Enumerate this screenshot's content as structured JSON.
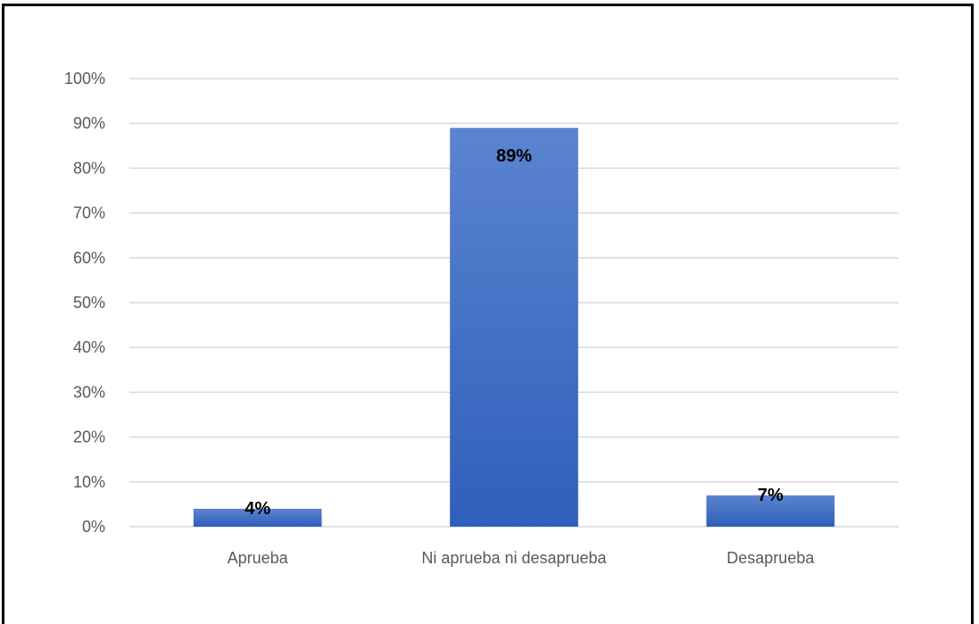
{
  "chart_data": {
    "type": "bar",
    "title": "",
    "xlabel": "",
    "ylabel": "",
    "categories": [
      "Aprueba",
      "Ni aprueba ni desaprueba",
      "Desaprueba"
    ],
    "values": [
      4,
      89,
      7
    ],
    "data_labels": [
      "4%",
      "89%",
      "7%"
    ],
    "ylim": [
      0,
      100
    ],
    "yticks": [
      0,
      10,
      20,
      30,
      40,
      50,
      60,
      70,
      80,
      90,
      100
    ],
    "ytick_labels": [
      "0%",
      "10%",
      "20%",
      "30%",
      "40%",
      "50%",
      "60%",
      "70%",
      "80%",
      "90%",
      "100%"
    ],
    "grid": true,
    "legend": "none",
    "colors": {
      "bar_top": "#5b84d0",
      "bar_bottom": "#2f5fbb",
      "grid": "#d9d9d9",
      "axis_text": "#595959"
    }
  }
}
